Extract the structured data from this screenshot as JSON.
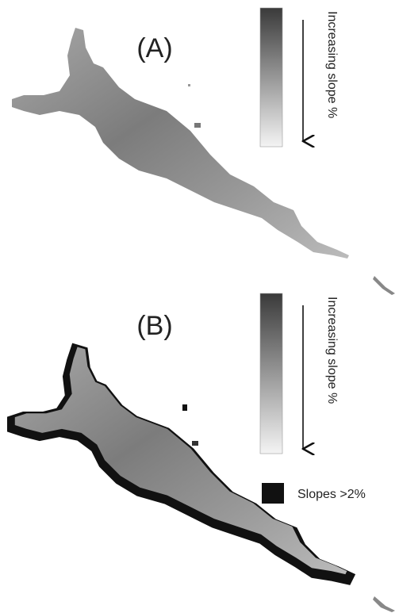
{
  "panels": [
    {
      "label": "(A)",
      "legend_title": "Increasing slope %"
    },
    {
      "label": "(B)",
      "legend_title": "Increasing slope %",
      "legend_item": "Slopes >2%"
    }
  ]
}
